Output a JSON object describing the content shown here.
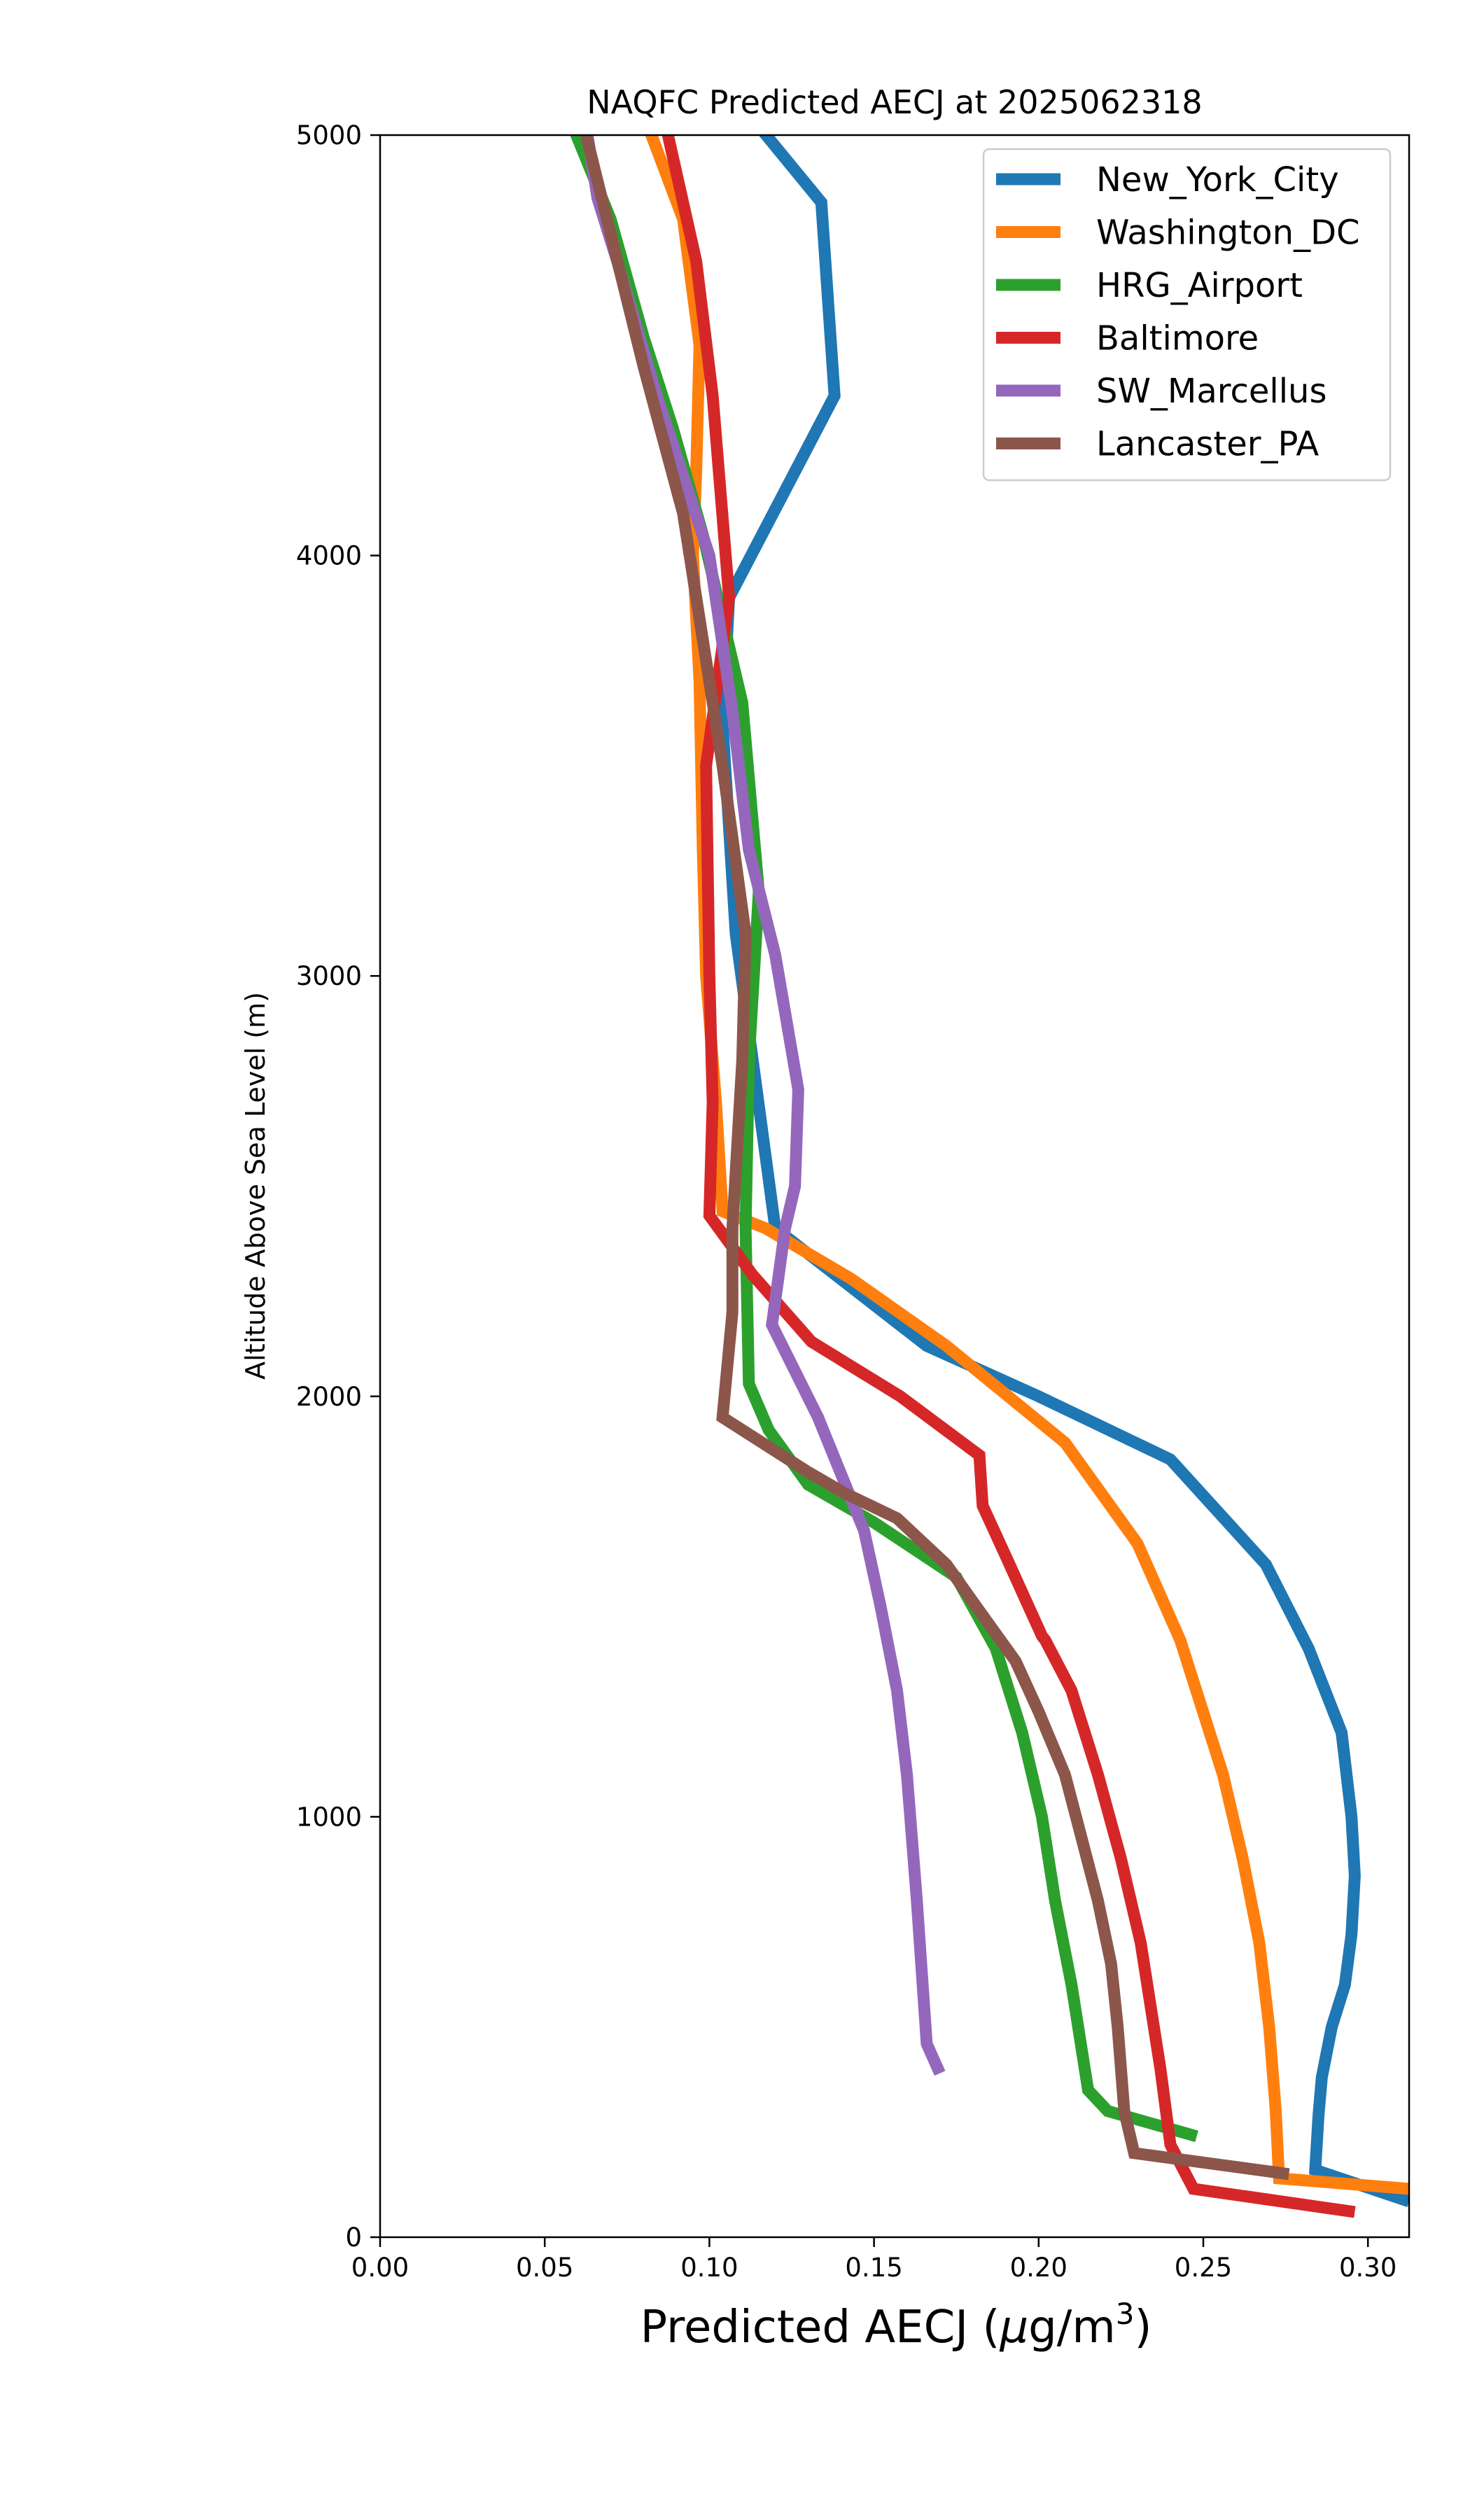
{
  "chart_data": {
    "type": "line",
    "title": "NAQFC Predicted AECJ at 2025062318",
    "xlabel_prefix": "Predicted AECJ (",
    "xlabel_mu": "μ",
    "xlabel_unit": "g/m",
    "xlabel_sup": "3",
    "xlabel_suffix": ")",
    "ylabel": "Altitude Above Sea Level (m)",
    "xlim": [
      0.0,
      0.3125
    ],
    "ylim": [
      0,
      5000
    ],
    "xticks": [
      0.0,
      0.05,
      0.1,
      0.15,
      0.2,
      0.25,
      0.3
    ],
    "xtick_labels": [
      "0.00",
      "0.05",
      "0.10",
      "0.15",
      "0.20",
      "0.25",
      "0.30"
    ],
    "yticks": [
      0,
      1000,
      2000,
      3000,
      4000,
      5000
    ],
    "ytick_labels": [
      "0",
      "1000",
      "2000",
      "3000",
      "4000",
      "5000"
    ],
    "grid": false,
    "legend_position": "top-right",
    "series": [
      {
        "name": "New_York_City",
        "color": "#1f77b4",
        "points": [
          [
            0.3125,
            85
          ],
          [
            0.284,
            160
          ],
          [
            0.285,
            290
          ],
          [
            0.286,
            380
          ],
          [
            0.289,
            500
          ],
          [
            0.293,
            600
          ],
          [
            0.295,
            720
          ],
          [
            0.296,
            860
          ],
          [
            0.295,
            1000
          ],
          [
            0.292,
            1200
          ],
          [
            0.282,
            1400
          ],
          [
            0.269,
            1600
          ],
          [
            0.24,
            1850
          ],
          [
            0.2,
            2000
          ],
          [
            0.166,
            2120
          ],
          [
            0.143,
            2260
          ],
          [
            0.12,
            2400
          ],
          [
            0.114,
            2750
          ],
          [
            0.108,
            3100
          ],
          [
            0.104,
            3600
          ],
          [
            0.106,
            3900
          ],
          [
            0.138,
            4380
          ],
          [
            0.134,
            4840
          ],
          [
            0.112,
            5050
          ]
        ]
      },
      {
        "name": "Washington_DC",
        "color": "#ff7f0e",
        "points": [
          [
            0.3125,
            115
          ],
          [
            0.273,
            140
          ],
          [
            0.272,
            300
          ],
          [
            0.27,
            500
          ],
          [
            0.267,
            700
          ],
          [
            0.262,
            900
          ],
          [
            0.256,
            1100
          ],
          [
            0.243,
            1420
          ],
          [
            0.23,
            1650
          ],
          [
            0.208,
            1890
          ],
          [
            0.172,
            2120
          ],
          [
            0.143,
            2280
          ],
          [
            0.117,
            2400
          ],
          [
            0.104,
            2440
          ],
          [
            0.102,
            2700
          ],
          [
            0.099,
            3000
          ],
          [
            0.098,
            3300
          ],
          [
            0.097,
            3700
          ],
          [
            0.095,
            4000
          ],
          [
            0.096,
            4200
          ],
          [
            0.097,
            4500
          ],
          [
            0.092,
            4800
          ],
          [
            0.08,
            5050
          ]
        ]
      },
      {
        "name": "HRG_Airport",
        "color": "#2ca02c",
        "points": [
          [
            0.248,
            240
          ],
          [
            0.221,
            300
          ],
          [
            0.215,
            350
          ],
          [
            0.21,
            600
          ],
          [
            0.205,
            800
          ],
          [
            0.201,
            1000
          ],
          [
            0.195,
            1200
          ],
          [
            0.187,
            1400
          ],
          [
            0.175,
            1570
          ],
          [
            0.15,
            1700
          ],
          [
            0.13,
            1790
          ],
          [
            0.118,
            1920
          ],
          [
            0.112,
            2030
          ],
          [
            0.111,
            2400
          ],
          [
            0.112,
            2800
          ],
          [
            0.115,
            3200
          ],
          [
            0.11,
            3650
          ],
          [
            0.098,
            4050
          ],
          [
            0.089,
            4300
          ],
          [
            0.08,
            4520
          ],
          [
            0.07,
            4800
          ],
          [
            0.057,
            5050
          ]
        ]
      },
      {
        "name": "Baltimore",
        "color": "#d62728",
        "points": [
          [
            0.296,
            60
          ],
          [
            0.247,
            115
          ],
          [
            0.24,
            220
          ],
          [
            0.237,
            400
          ],
          [
            0.231,
            700
          ],
          [
            0.225,
            900
          ],
          [
            0.218,
            1100
          ],
          [
            0.21,
            1300
          ],
          [
            0.202,
            1420
          ],
          [
            0.201,
            1430
          ],
          [
            0.19,
            1620
          ],
          [
            0.183,
            1740
          ],
          [
            0.182,
            1860
          ],
          [
            0.158,
            2000
          ],
          [
            0.131,
            2130
          ],
          [
            0.113,
            2290
          ],
          [
            0.1,
            2430
          ],
          [
            0.101,
            2700
          ],
          [
            0.1,
            3000
          ],
          [
            0.099,
            3500
          ],
          [
            0.106,
            3900
          ],
          [
            0.101,
            4380
          ],
          [
            0.096,
            4700
          ],
          [
            0.086,
            5050
          ]
        ]
      },
      {
        "name": "SW_Marcellus",
        "color": "#9467bd",
        "points": [
          [
            0.17,
            390
          ],
          [
            0.166,
            460
          ],
          [
            0.163,
            800
          ],
          [
            0.16,
            1100
          ],
          [
            0.157,
            1300
          ],
          [
            0.152,
            1500
          ],
          [
            0.147,
            1680
          ],
          [
            0.133,
            1950
          ],
          [
            0.119,
            2170
          ],
          [
            0.123,
            2400
          ],
          [
            0.126,
            2500
          ],
          [
            0.127,
            2730
          ],
          [
            0.12,
            3050
          ],
          [
            0.112,
            3300
          ],
          [
            0.107,
            3630
          ],
          [
            0.1,
            4000
          ],
          [
            0.084,
            4380
          ],
          [
            0.072,
            4700
          ],
          [
            0.066,
            4850
          ],
          [
            0.062,
            5050
          ]
        ]
      },
      {
        "name": "Lancaster_PA",
        "color": "#8c564b",
        "points": [
          [
            0.276,
            150
          ],
          [
            0.229,
            200
          ],
          [
            0.226,
            300
          ],
          [
            0.224,
            500
          ],
          [
            0.222,
            650
          ],
          [
            0.218,
            800
          ],
          [
            0.213,
            950
          ],
          [
            0.208,
            1100
          ],
          [
            0.2,
            1250
          ],
          [
            0.193,
            1370
          ],
          [
            0.182,
            1490
          ],
          [
            0.172,
            1600
          ],
          [
            0.157,
            1710
          ],
          [
            0.141,
            1770
          ],
          [
            0.13,
            1820
          ],
          [
            0.118,
            1880
          ],
          [
            0.104,
            1950
          ],
          [
            0.107,
            2200
          ],
          [
            0.107,
            2400
          ],
          [
            0.11,
            2800
          ],
          [
            0.111,
            3100
          ],
          [
            0.104,
            3500
          ],
          [
            0.098,
            3800
          ],
          [
            0.092,
            4100
          ],
          [
            0.08,
            4450
          ],
          [
            0.061,
            5050
          ]
        ]
      }
    ]
  }
}
